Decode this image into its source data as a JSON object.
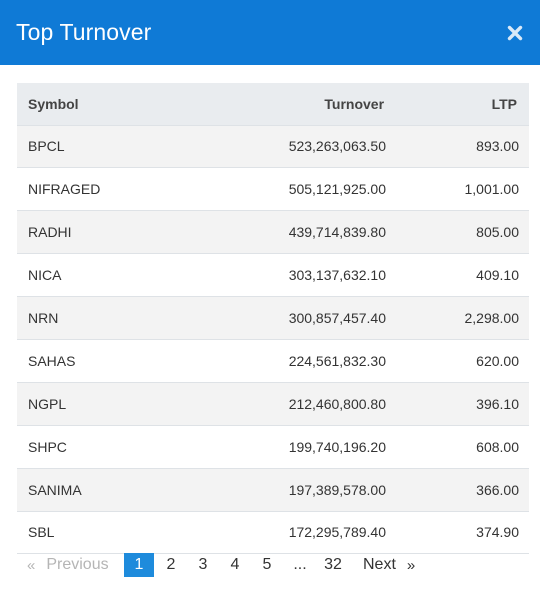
{
  "header": {
    "title": "Top Turnover"
  },
  "table": {
    "columns": {
      "symbol": "Symbol",
      "turnover": "Turnover",
      "ltp": "LTP"
    },
    "rows": [
      {
        "symbol": "BPCL",
        "turnover": "523,263,063.50",
        "ltp": "893.00"
      },
      {
        "symbol": "NIFRAGED",
        "turnover": "505,121,925.00",
        "ltp": "1,001.00"
      },
      {
        "symbol": "RADHI",
        "turnover": "439,714,839.80",
        "ltp": "805.00"
      },
      {
        "symbol": "NICA",
        "turnover": "303,137,632.10",
        "ltp": "409.10"
      },
      {
        "symbol": "NRN",
        "turnover": "300,857,457.40",
        "ltp": "2,298.00"
      },
      {
        "symbol": "SAHAS",
        "turnover": "224,561,832.30",
        "ltp": "620.00"
      },
      {
        "symbol": "NGPL",
        "turnover": "212,460,800.80",
        "ltp": "396.10"
      },
      {
        "symbol": "SHPC",
        "turnover": "199,740,196.20",
        "ltp": "608.00"
      },
      {
        "symbol": "SANIMA",
        "turnover": "197,389,578.00",
        "ltp": "366.00"
      },
      {
        "symbol": "SBL",
        "turnover": "172,295,789.40",
        "ltp": "374.90"
      }
    ]
  },
  "pagination": {
    "prev_arrow": "«",
    "prev_label": "Previous",
    "pages": [
      "1",
      "2",
      "3",
      "4",
      "5"
    ],
    "active_page": "1",
    "ellipsis": "...",
    "last_page": "32",
    "next_label": "Next",
    "next_arrow": "»"
  },
  "icons": {
    "close": "close-icon"
  },
  "colors": {
    "header_bg": "#0f7ad6",
    "active_page_bg": "#1e8bdc",
    "table_head_bg": "#e9ecef"
  }
}
